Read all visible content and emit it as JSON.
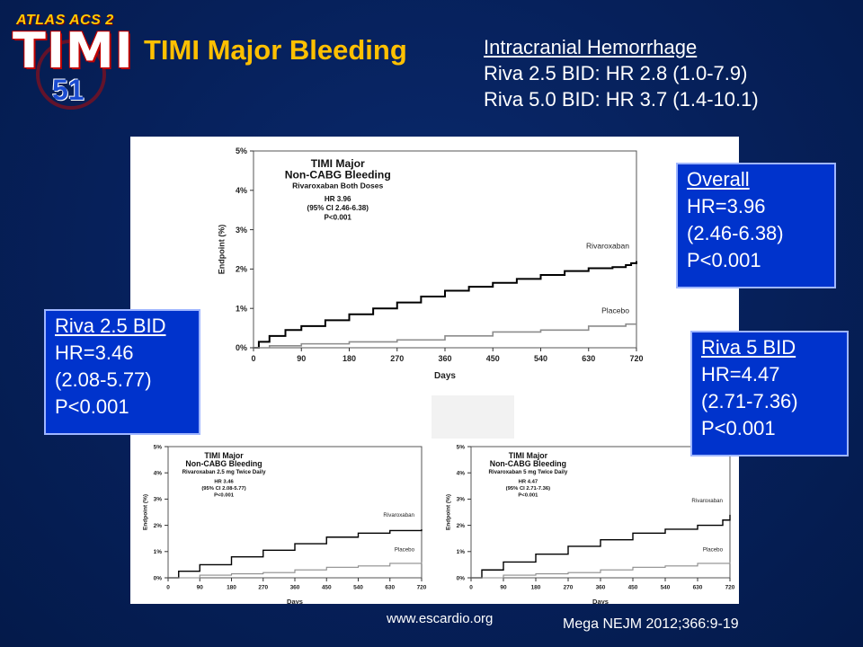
{
  "logo": {
    "top_text": "ATLAS ACS 2",
    "main_text": "TIMI",
    "number": "51"
  },
  "title": "TIMI Major Bleeding",
  "ich": {
    "heading": "Intracranial Hemorrhage",
    "line1": "Riva 2.5 BID: HR 2.8 (1.0-7.9)",
    "line2": "Riva 5.0 BID: HR 3.7 (1.4-10.1)"
  },
  "boxes": {
    "overall": {
      "heading": "Overall",
      "hr": "HR=3.96",
      "ci": "(2.46-6.38)",
      "p": "P<0.001"
    },
    "riva25": {
      "heading": "Riva 2.5 BID",
      "hr": "HR=3.46",
      "ci": "(2.08-5.77)",
      "p": "P<0.001"
    },
    "riva5": {
      "heading": "Riva 5 BID",
      "hr": "HR=4.47",
      "ci": "(2.71-7.36)",
      "p": "P<0.001"
    }
  },
  "footer": {
    "url": "www.escardio.org",
    "reference": "Mega NEJM 2012;366:9-19"
  },
  "colors": {
    "title": "#ffc000",
    "box": "#0033cc",
    "rivaroxaban_line": "#000000",
    "placebo_line": "#8c8c8c"
  },
  "chart_data": [
    {
      "type": "line",
      "title": "TIMI Major Non-CABG Bleeding",
      "subtitle": "Rivaroxaban Both Doses",
      "annotation": [
        "HR 3.96",
        "(95% CI 2.46-6.38)",
        "P<0.001"
      ],
      "xlabel": "Days",
      "ylabel": "Endpoint (%)",
      "xticks": [
        0,
        90,
        180,
        270,
        360,
        450,
        540,
        630,
        720
      ],
      "yticks": [
        "0%",
        "1%",
        "2%",
        "3%",
        "4%",
        "5%"
      ],
      "xlim": [
        0,
        720
      ],
      "ylim": [
        0,
        5
      ],
      "series": [
        {
          "name": "Rivaroxaban",
          "x": [
            0,
            10,
            30,
            60,
            90,
            135,
            180,
            225,
            270,
            315,
            360,
            405,
            450,
            495,
            540,
            585,
            630,
            675,
            700,
            710,
            720
          ],
          "values": [
            0,
            0.15,
            0.3,
            0.45,
            0.55,
            0.7,
            0.85,
            1.0,
            1.15,
            1.3,
            1.45,
            1.55,
            1.65,
            1.75,
            1.85,
            1.95,
            2.02,
            2.05,
            2.1,
            2.15,
            2.2
          ]
        },
        {
          "name": "Placebo",
          "x": [
            0,
            30,
            90,
            180,
            270,
            360,
            450,
            540,
            630,
            700,
            720
          ],
          "values": [
            0,
            0.05,
            0.1,
            0.15,
            0.2,
            0.3,
            0.4,
            0.45,
            0.55,
            0.6,
            0.6
          ]
        }
      ]
    },
    {
      "type": "line",
      "title": "TIMI Major Non-CABG Bleeding",
      "subtitle": "Rivaroxaban 2.5 mg Twice Daily",
      "annotation": [
        "HR 3.46",
        "(95% CI 2.08-5.77)",
        "P<0.001"
      ],
      "xlabel": "Days",
      "ylabel": "Endpoint (%)",
      "xticks": [
        0,
        90,
        180,
        270,
        360,
        450,
        540,
        630,
        720
      ],
      "yticks": [
        "0%",
        "1%",
        "2%",
        "3%",
        "4%",
        "5%"
      ],
      "xlim": [
        0,
        720
      ],
      "ylim": [
        0,
        5
      ],
      "series": [
        {
          "name": "Rivaroxaban",
          "x": [
            0,
            30,
            90,
            180,
            270,
            360,
            450,
            540,
            630,
            720
          ],
          "values": [
            0,
            0.25,
            0.5,
            0.8,
            1.05,
            1.3,
            1.55,
            1.7,
            1.8,
            1.85
          ]
        },
        {
          "name": "Placebo",
          "x": [
            0,
            90,
            180,
            270,
            360,
            450,
            540,
            630,
            720
          ],
          "values": [
            0,
            0.1,
            0.15,
            0.2,
            0.3,
            0.4,
            0.45,
            0.55,
            0.6
          ]
        }
      ]
    },
    {
      "type": "line",
      "title": "TIMI Major Non-CABG Bleeding",
      "subtitle": "Rivaroxaban 5 mg Twice Daily",
      "annotation": [
        "HR 4.47",
        "(95% CI 2.71-7.36)",
        "P<0.001"
      ],
      "xlabel": "Days",
      "ylabel": "Endpoint (%)",
      "xticks": [
        0,
        90,
        180,
        270,
        360,
        450,
        540,
        630,
        720
      ],
      "yticks": [
        "0%",
        "1%",
        "2%",
        "3%",
        "4%",
        "5%"
      ],
      "xlim": [
        0,
        720
      ],
      "ylim": [
        0,
        5
      ],
      "series": [
        {
          "name": "Rivaroxaban",
          "x": [
            0,
            30,
            90,
            180,
            270,
            360,
            450,
            540,
            630,
            700,
            720
          ],
          "values": [
            0,
            0.3,
            0.6,
            0.9,
            1.2,
            1.45,
            1.7,
            1.85,
            2.0,
            2.2,
            2.4
          ]
        },
        {
          "name": "Placebo",
          "x": [
            0,
            90,
            180,
            270,
            360,
            450,
            540,
            630,
            720
          ],
          "values": [
            0,
            0.1,
            0.15,
            0.2,
            0.3,
            0.4,
            0.45,
            0.55,
            0.6
          ]
        }
      ]
    }
  ]
}
